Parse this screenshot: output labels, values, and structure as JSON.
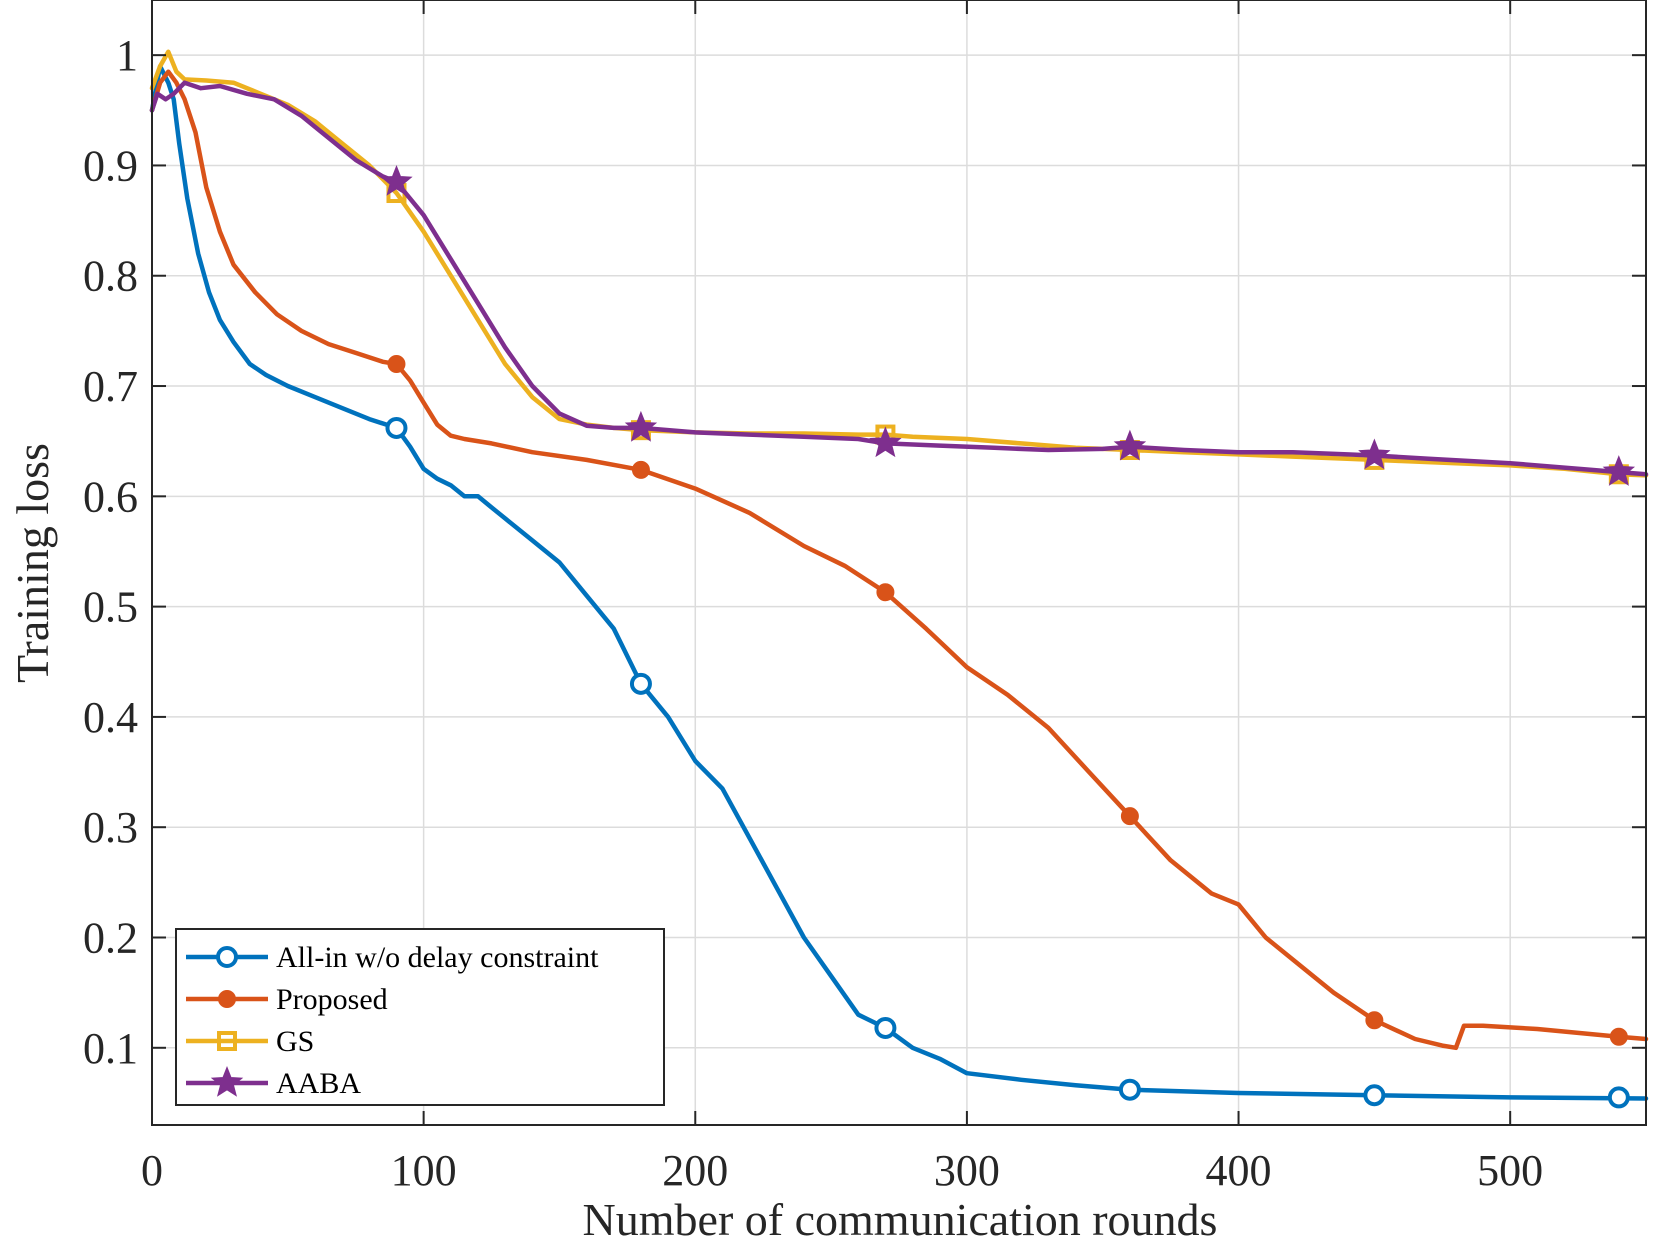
{
  "chart_data": {
    "type": "line",
    "title": "",
    "xlabel": "Number of communication rounds",
    "ylabel": "Training loss",
    "xlim": [
      0,
      550
    ],
    "ylim": [
      0.03,
      1.05
    ],
    "xticks": [
      0,
      100,
      200,
      300,
      400,
      500
    ],
    "xtick_labels": [
      "0",
      "100",
      "200",
      "300",
      "400",
      "500"
    ],
    "yticks": [
      0.1,
      0.2,
      0.3,
      0.4,
      0.5,
      0.6,
      0.7,
      0.8,
      0.9,
      1.0
    ],
    "ytick_labels": [
      "0.1",
      "0.2",
      "0.3",
      "0.4",
      "0.5",
      "0.6",
      "0.7",
      "0.8",
      "0.9",
      "1"
    ],
    "grid": true,
    "legend_position": "bottom-left",
    "series": [
      {
        "name": "All-in w/o delay constraint",
        "color": "#0072BD",
        "marker": "circle-open",
        "x": [
          0,
          3,
          6,
          8,
          10,
          13,
          17,
          21,
          25,
          30,
          36,
          42,
          50,
          60,
          70,
          80,
          90,
          95,
          100,
          105,
          110,
          115,
          120,
          125,
          130,
          140,
          150,
          160,
          170,
          180,
          190,
          200,
          210,
          220,
          230,
          240,
          250,
          260,
          270,
          280,
          290,
          300,
          320,
          340,
          360,
          400,
          450,
          500,
          550
        ],
        "y": [
          0.95,
          0.99,
          0.975,
          0.96,
          0.92,
          0.87,
          0.82,
          0.785,
          0.76,
          0.74,
          0.72,
          0.71,
          0.7,
          0.69,
          0.68,
          0.67,
          0.662,
          0.645,
          0.625,
          0.616,
          0.61,
          0.6,
          0.6,
          0.59,
          0.58,
          0.56,
          0.54,
          0.51,
          0.48,
          0.43,
          0.4,
          0.36,
          0.335,
          0.29,
          0.245,
          0.2,
          0.165,
          0.13,
          0.118,
          0.1,
          0.09,
          0.077,
          0.071,
          0.066,
          0.062,
          0.059,
          0.057,
          0.055,
          0.054
        ],
        "marker_x": [
          90,
          180,
          270,
          360,
          450,
          540
        ],
        "marker_y": [
          0.662,
          0.43,
          0.118,
          0.062,
          0.057,
          0.055
        ]
      },
      {
        "name": "Proposed",
        "color": "#D95319",
        "marker": "circle-filled",
        "x": [
          0,
          3,
          6,
          9,
          12,
          16,
          20,
          25,
          30,
          38,
          46,
          55,
          65,
          75,
          85,
          90,
          95,
          100,
          105,
          110,
          115,
          125,
          140,
          160,
          180,
          200,
          220,
          240,
          255,
          270,
          285,
          300,
          315,
          330,
          345,
          360,
          375,
          390,
          400,
          410,
          420,
          435,
          450,
          465,
          475,
          480,
          483,
          490,
          510,
          540,
          550
        ],
        "y": [
          0.95,
          0.975,
          0.985,
          0.975,
          0.96,
          0.93,
          0.88,
          0.84,
          0.81,
          0.785,
          0.765,
          0.75,
          0.738,
          0.73,
          0.722,
          0.72,
          0.705,
          0.685,
          0.665,
          0.655,
          0.652,
          0.648,
          0.64,
          0.633,
          0.624,
          0.607,
          0.585,
          0.555,
          0.537,
          0.513,
          0.48,
          0.445,
          0.42,
          0.39,
          0.35,
          0.31,
          0.27,
          0.24,
          0.23,
          0.2,
          0.18,
          0.15,
          0.125,
          0.108,
          0.102,
          0.1,
          0.12,
          0.12,
          0.117,
          0.11,
          0.108
        ],
        "marker_x": [
          90,
          180,
          270,
          360,
          450,
          540
        ],
        "marker_y": [
          0.72,
          0.624,
          0.513,
          0.31,
          0.125,
          0.11
        ]
      },
      {
        "name": "GS",
        "color": "#EDB120",
        "marker": "square-open",
        "x": [
          0,
          3,
          6,
          9,
          12,
          20,
          30,
          40,
          50,
          60,
          70,
          80,
          90,
          100,
          110,
          120,
          130,
          140,
          150,
          160,
          170,
          180,
          200,
          220,
          240,
          260,
          270,
          280,
          300,
          320,
          340,
          360,
          380,
          400,
          420,
          440,
          450,
          460,
          480,
          500,
          520,
          540,
          550
        ],
        "y": [
          0.97,
          0.99,
          1.003,
          0.985,
          0.978,
          0.977,
          0.975,
          0.965,
          0.955,
          0.94,
          0.92,
          0.9,
          0.875,
          0.84,
          0.8,
          0.76,
          0.72,
          0.69,
          0.67,
          0.665,
          0.662,
          0.66,
          0.658,
          0.657,
          0.657,
          0.656,
          0.656,
          0.654,
          0.652,
          0.648,
          0.644,
          0.642,
          0.64,
          0.638,
          0.636,
          0.634,
          0.633,
          0.632,
          0.63,
          0.628,
          0.625,
          0.62,
          0.619
        ],
        "marker_x": [
          90,
          180,
          270,
          360,
          450,
          540
        ],
        "marker_y": [
          0.875,
          0.66,
          0.656,
          0.642,
          0.633,
          0.62
        ]
      },
      {
        "name": "AABA",
        "color": "#7E2F8E",
        "marker": "star-filled",
        "x": [
          0,
          2,
          5,
          8,
          12,
          18,
          25,
          35,
          45,
          55,
          65,
          75,
          85,
          90,
          100,
          110,
          120,
          130,
          140,
          150,
          160,
          170,
          180,
          200,
          220,
          240,
          260,
          270,
          290,
          310,
          330,
          350,
          360,
          380,
          400,
          420,
          440,
          450,
          470,
          500,
          530,
          540,
          550
        ],
        "y": [
          0.95,
          0.965,
          0.96,
          0.965,
          0.975,
          0.97,
          0.972,
          0.965,
          0.96,
          0.945,
          0.925,
          0.905,
          0.89,
          0.885,
          0.855,
          0.815,
          0.775,
          0.735,
          0.7,
          0.675,
          0.664,
          0.662,
          0.662,
          0.658,
          0.656,
          0.654,
          0.652,
          0.648,
          0.646,
          0.644,
          0.642,
          0.643,
          0.645,
          0.642,
          0.64,
          0.64,
          0.638,
          0.637,
          0.634,
          0.63,
          0.624,
          0.622,
          0.62
        ],
        "marker_x": [
          90,
          180,
          270,
          360,
          450,
          540
        ],
        "marker_y": [
          0.885,
          0.662,
          0.648,
          0.645,
          0.637,
          0.622
        ]
      }
    ]
  }
}
